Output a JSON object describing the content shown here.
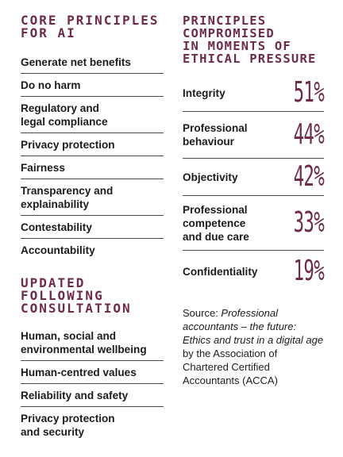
{
  "left": {
    "heading": [
      "CORE PRINCIPLES",
      "FOR AI"
    ],
    "principles": [
      [
        "Generate net benefits"
      ],
      [
        "Do no harm"
      ],
      [
        "Regulatory and",
        "legal compliance"
      ],
      [
        "Privacy protection"
      ],
      [
        "Fairness"
      ],
      [
        "Transparency and",
        "explainability"
      ],
      [
        "Contestability"
      ],
      [
        "Accountability"
      ]
    ],
    "updated_heading": [
      "UPDATED",
      "FOLLOWING",
      "CONSULTATION"
    ],
    "updated": [
      [
        "Human, social and",
        "environmental wellbeing"
      ],
      [
        "Human-centred values"
      ],
      [
        "Reliability and safety"
      ],
      [
        "Privacy protection",
        "and security"
      ]
    ]
  },
  "right": {
    "heading": [
      "PRINCIPLES",
      "COMPROMISED",
      "IN MOMENTS OF",
      "ETHICAL PRESSURE"
    ],
    "stats": [
      {
        "label": [
          "Integrity"
        ],
        "value": "51%"
      },
      {
        "label": [
          "Professional",
          "behaviour"
        ],
        "value": "44%"
      },
      {
        "label": [
          "Objectivity"
        ],
        "value": "42%"
      },
      {
        "label": [
          "Professional",
          "competence",
          "and due care"
        ],
        "value": "33%"
      },
      {
        "label": [
          "Confidentiality"
        ],
        "value": "19%"
      }
    ],
    "source": {
      "prefix": "Source: ",
      "title": "Professional accountants – the future: Ethics and trust in a digital age",
      "suffix": " by the Association of Chartered Certified Accountants (ACCA)"
    }
  }
}
